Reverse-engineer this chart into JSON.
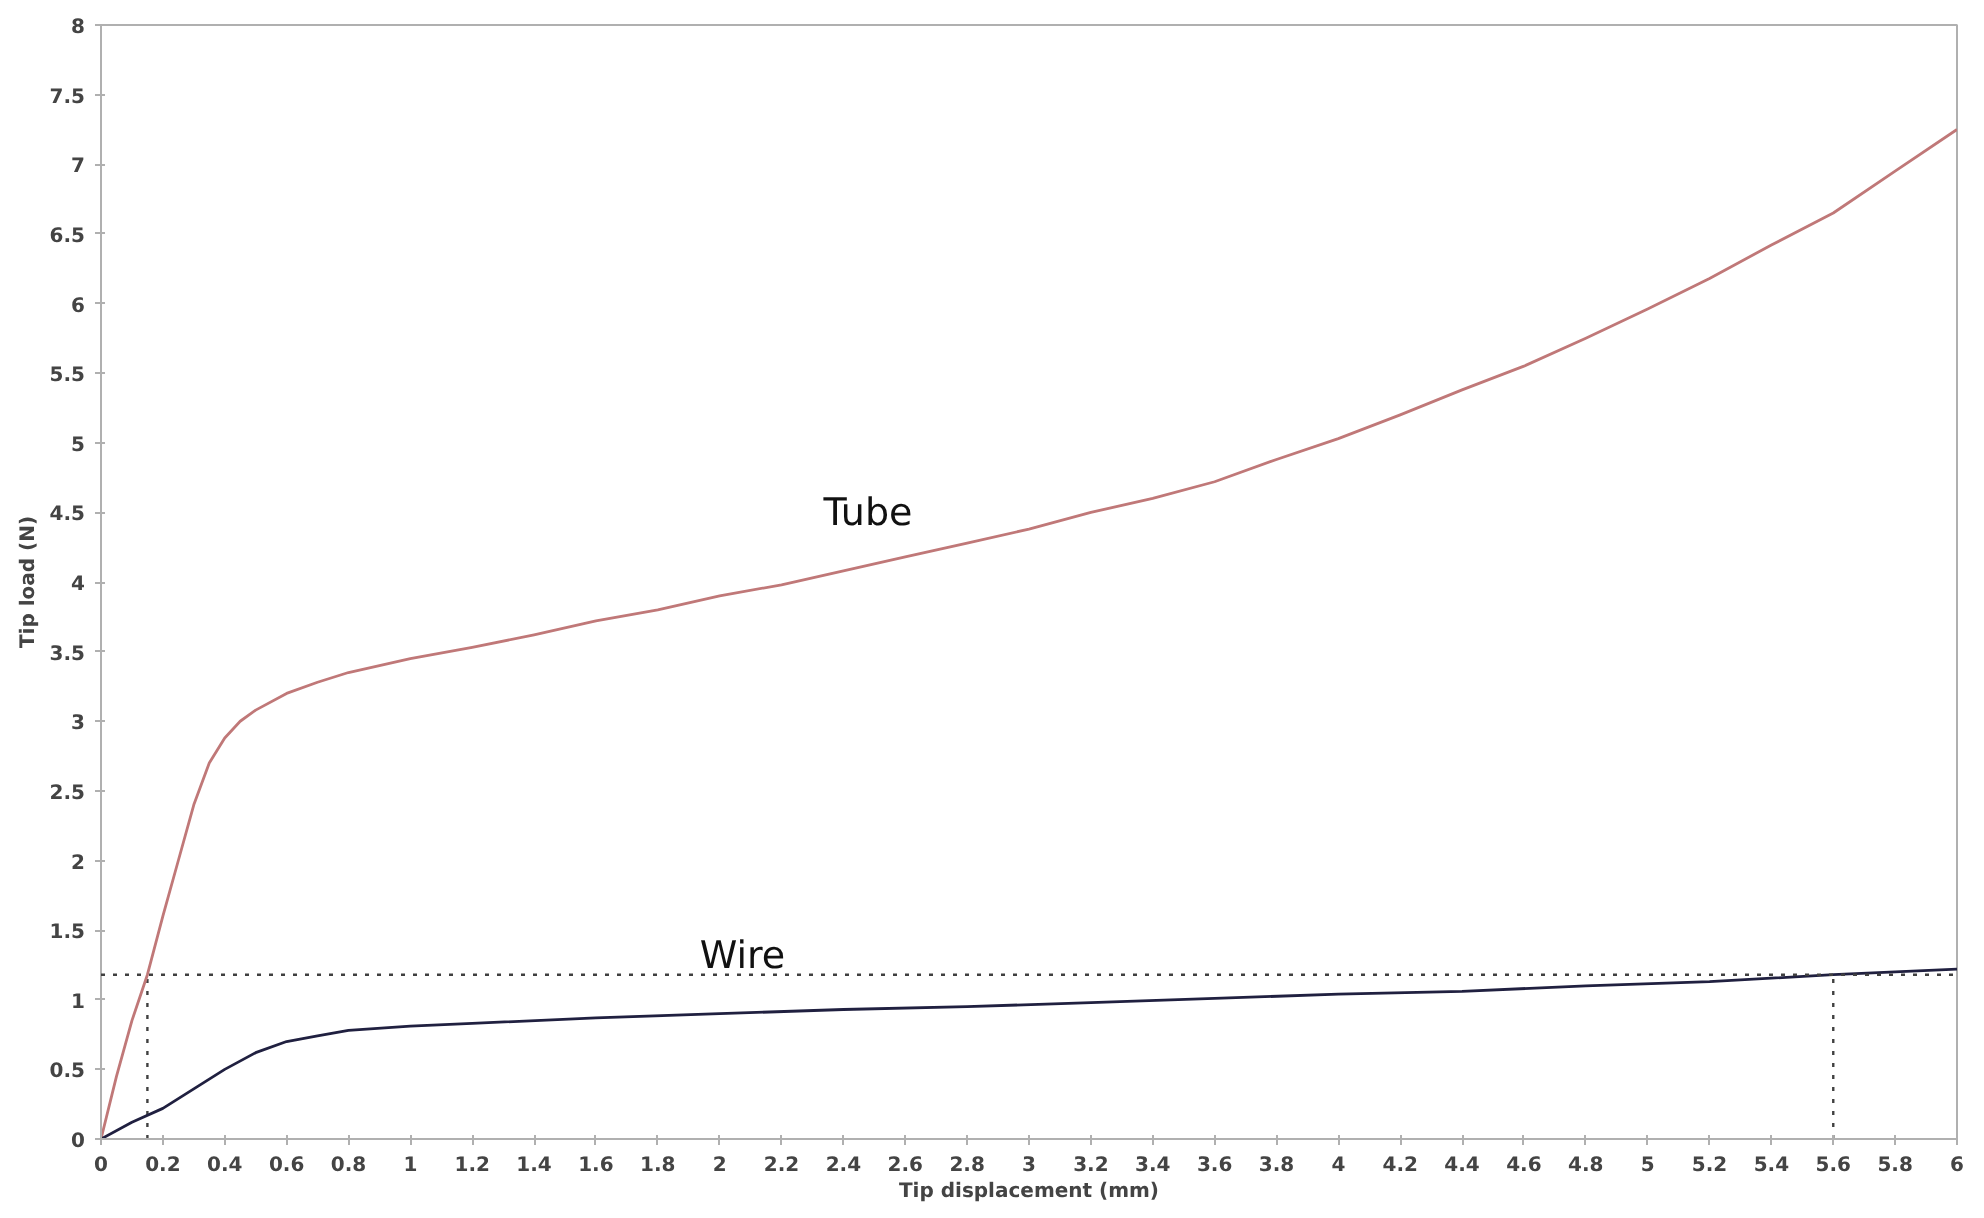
{
  "chart_data": {
    "type": "line",
    "xlabel": "Tip displacement (mm)",
    "ylabel": "Tip load (N)",
    "xlim": [
      0,
      6
    ],
    "ylim": [
      0,
      8
    ],
    "xticks": [
      0,
      0.2,
      0.4,
      0.6,
      0.8,
      1,
      1.2,
      1.4,
      1.6,
      1.8,
      2,
      2.2,
      2.4,
      2.6,
      2.8,
      3,
      3.2,
      3.4,
      3.6,
      3.8,
      4,
      4.2,
      4.4,
      4.6,
      4.8,
      5,
      5.2,
      5.4,
      5.6,
      5.8,
      6
    ],
    "yticks": [
      0,
      0.5,
      1,
      1.5,
      2,
      2.5,
      3,
      3.5,
      4,
      4.5,
      5,
      5.5,
      6,
      6.5,
      7,
      7.5,
      8
    ],
    "grid": false,
    "legend": false,
    "marker": "none",
    "line_style": "solid",
    "series": [
      {
        "name": "Tube",
        "color": "#c07878",
        "x": [
          0,
          0.05,
          0.1,
          0.15,
          0.2,
          0.25,
          0.3,
          0.35,
          0.4,
          0.45,
          0.5,
          0.6,
          0.7,
          0.8,
          1.0,
          1.2,
          1.4,
          1.6,
          1.8,
          2.0,
          2.2,
          2.4,
          2.6,
          2.8,
          3.0,
          3.2,
          3.4,
          3.6,
          3.8,
          4.0,
          4.2,
          4.4,
          4.6,
          4.8,
          5.0,
          5.2,
          5.4,
          5.6,
          5.8,
          6.0
        ],
        "values": [
          0,
          0.45,
          0.85,
          1.18,
          1.6,
          2.0,
          2.4,
          2.7,
          2.88,
          3.0,
          3.08,
          3.2,
          3.28,
          3.35,
          3.45,
          3.53,
          3.62,
          3.72,
          3.8,
          3.9,
          3.98,
          4.08,
          4.18,
          4.28,
          4.38,
          4.5,
          4.6,
          4.72,
          4.88,
          5.03,
          5.2,
          5.38,
          5.55,
          5.75,
          5.96,
          6.18,
          6.42,
          6.65,
          6.95,
          7.25
        ]
      },
      {
        "name": "Wire",
        "color": "#202040",
        "x": [
          0,
          0.1,
          0.2,
          0.3,
          0.4,
          0.5,
          0.6,
          0.7,
          0.8,
          1.0,
          1.2,
          1.6,
          2.0,
          2.4,
          2.8,
          3.2,
          3.6,
          4.0,
          4.4,
          4.8,
          5.2,
          5.6,
          6.0
        ],
        "values": [
          0,
          0.12,
          0.22,
          0.36,
          0.5,
          0.62,
          0.7,
          0.74,
          0.78,
          0.81,
          0.83,
          0.87,
          0.9,
          0.93,
          0.95,
          0.98,
          1.01,
          1.04,
          1.06,
          1.1,
          1.13,
          1.18,
          1.22
        ]
      }
    ],
    "ref_lines": [
      {
        "axis": "y",
        "value": 1.18,
        "line_style": "dotted",
        "color": "#404040"
      },
      {
        "axis": "x",
        "value": 0.15,
        "line_style": "dotted",
        "color": "#404040"
      },
      {
        "axis": "x",
        "value": 5.6,
        "line_style": "dotted",
        "color": "#404040"
      }
    ]
  }
}
